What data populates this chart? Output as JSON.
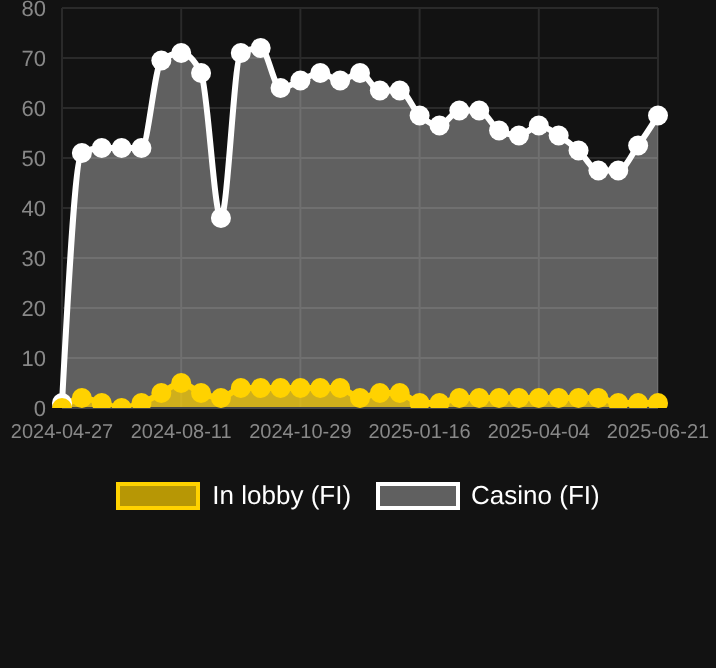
{
  "chart_data": {
    "type": "area",
    "categories": [
      "2024-04-27",
      null,
      null,
      null,
      null,
      null,
      "2024-08-11",
      null,
      null,
      null,
      null,
      null,
      "2024-10-29",
      null,
      null,
      null,
      null,
      null,
      "2025-01-16",
      null,
      null,
      null,
      null,
      null,
      "2025-04-04",
      null,
      null,
      null,
      null,
      null,
      "2025-06-21"
    ],
    "series": [
      {
        "name": "In lobby (FI)",
        "color": "#ffd200",
        "values": [
          0,
          2,
          1,
          0,
          1,
          3,
          5,
          3,
          2,
          4,
          4,
          4,
          4,
          4,
          4,
          2,
          3,
          3,
          1,
          1,
          2,
          2,
          2,
          2,
          2,
          2,
          2,
          2,
          1,
          1,
          1
        ]
      },
      {
        "name": "Casino (FI)",
        "color": "#ffffff",
        "values": [
          1,
          51,
          52,
          52,
          52,
          69.5,
          71,
          67,
          38,
          71,
          72,
          64,
          65.5,
          67,
          65.5,
          67,
          63.5,
          63.5,
          58.5,
          56.5,
          59.5,
          59.5,
          55.5,
          54.5,
          56.5,
          54.5,
          51.5,
          47.5,
          47.5,
          52.5,
          58.5
        ]
      }
    ],
    "ylim": [
      0,
      80
    ],
    "yticks": [
      0,
      10,
      20,
      30,
      40,
      50,
      60,
      70,
      80
    ],
    "grid": true,
    "legend": "bottom",
    "marker": "circle",
    "line_style": "solid"
  }
}
